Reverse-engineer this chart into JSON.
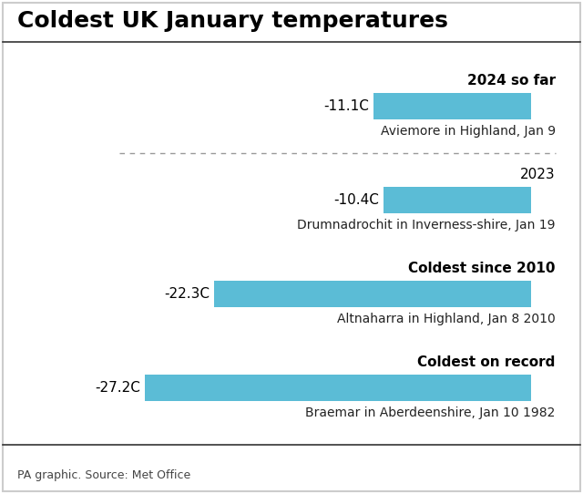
{
  "title": "Coldest UK January temperatures",
  "bars": [
    {
      "label": "2024 so far",
      "value": -11.1,
      "label_bold": true,
      "temp_str": "-11.1C",
      "subtitle": "Aviemore in Highland, Jan 9"
    },
    {
      "label": "2023",
      "value": -10.4,
      "label_bold": false,
      "temp_str": "-10.4C",
      "subtitle": "Drumnadrochit in Inverness-shire, Jan 19"
    },
    {
      "label": "Coldest since 2010",
      "value": -22.3,
      "label_bold": true,
      "temp_str": "-22.3C",
      "subtitle": "Altnaharra in Highland, Jan 8 2010"
    },
    {
      "label": "Coldest on record",
      "value": -27.2,
      "label_bold": true,
      "temp_str": "-27.2C",
      "subtitle": "Braemar in Aberdeenshire, Jan 10 1982"
    }
  ],
  "bar_color": "#5bbcd6",
  "background_color": "#ffffff",
  "title_fontsize": 18,
  "label_fontsize": 11,
  "subtitle_fontsize": 10,
  "temp_fontsize": 11,
  "footer": "PA graphic. Source: Met Office",
  "footer_fontsize": 9,
  "border_color": "#cccccc"
}
